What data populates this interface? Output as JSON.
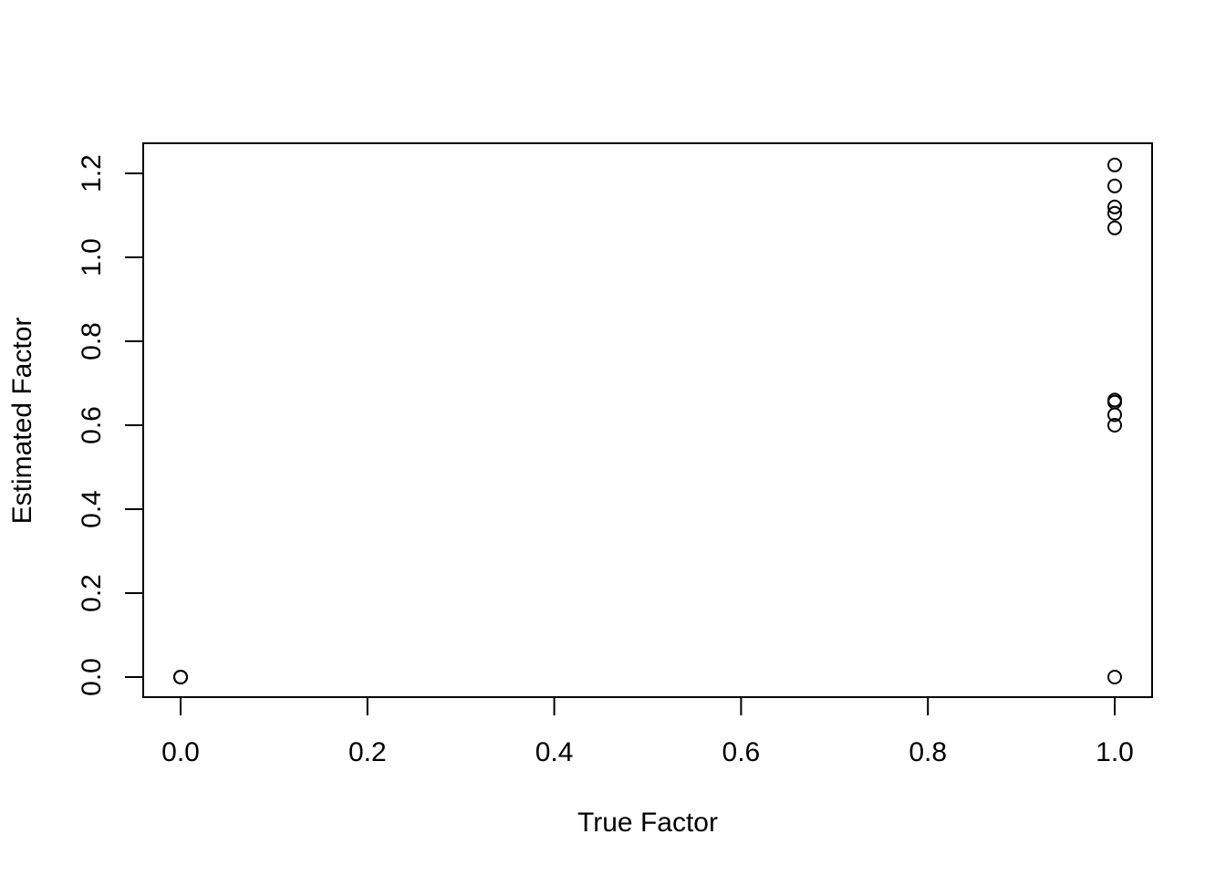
{
  "chart_data": {
    "type": "scatter",
    "title": "",
    "xlabel": "True Factor",
    "ylabel": "Estimated Factor",
    "xlim": [
      0.0,
      1.0
    ],
    "ylim": [
      0.0,
      1.2
    ],
    "x_ticks": [
      "0.0",
      "0.2",
      "0.4",
      "0.6",
      "0.8",
      "1.0"
    ],
    "y_ticks": [
      "0.0",
      "0.2",
      "0.4",
      "0.6",
      "0.8",
      "1.0",
      "1.2"
    ],
    "grid": false,
    "legend": "none",
    "marker": "open-circle",
    "color": "#000000",
    "points": [
      {
        "x": 0.0,
        "y": 0.0
      },
      {
        "x": 0.0,
        "y": 0.0
      },
      {
        "x": 0.0,
        "y": 0.0
      },
      {
        "x": 1.0,
        "y": 1.22
      },
      {
        "x": 1.0,
        "y": 1.17
      },
      {
        "x": 1.0,
        "y": 1.12
      },
      {
        "x": 1.0,
        "y": 1.105
      },
      {
        "x": 1.0,
        "y": 1.07
      },
      {
        "x": 1.0,
        "y": 0.66
      },
      {
        "x": 1.0,
        "y": 0.655
      },
      {
        "x": 1.0,
        "y": 0.625
      },
      {
        "x": 1.0,
        "y": 0.6
      },
      {
        "x": 1.0,
        "y": 0.0
      }
    ]
  }
}
